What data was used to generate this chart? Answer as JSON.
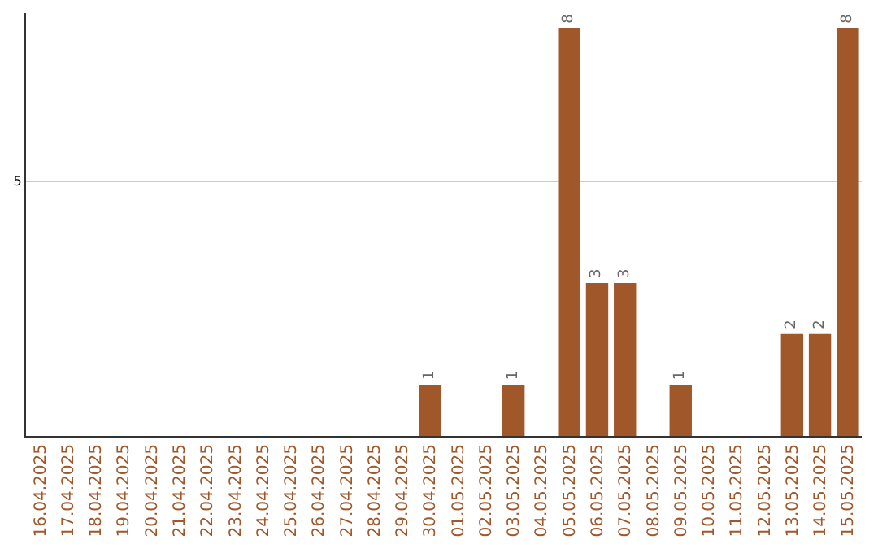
{
  "chart_data": {
    "type": "bar",
    "ylim": [
      0,
      8.3
    ],
    "categories": [
      "16.04.2025",
      "17.04.2025",
      "18.04.2025",
      "19.04.2025",
      "20.04.2025",
      "21.04.2025",
      "22.04.2025",
      "23.04.2025",
      "24.04.2025",
      "25.04.2025",
      "26.04.2025",
      "27.04.2025",
      "28.04.2025",
      "29.04.2025",
      "30.04.2025",
      "01.05.2025",
      "02.05.2025",
      "03.05.2025",
      "04.05.2025",
      "05.05.2025",
      "06.05.2025",
      "07.05.2025",
      "08.05.2025",
      "09.05.2025",
      "10.05.2025",
      "11.05.2025",
      "12.05.2025",
      "13.05.2025",
      "14.05.2025",
      "15.05.2025"
    ],
    "values": [
      null,
      null,
      null,
      null,
      null,
      null,
      null,
      null,
      null,
      null,
      null,
      null,
      null,
      null,
      1,
      null,
      null,
      1,
      null,
      8,
      3,
      3,
      null,
      1,
      null,
      null,
      null,
      2,
      2,
      8
    ],
    "value_labels": [
      null,
      null,
      null,
      null,
      null,
      null,
      null,
      null,
      null,
      null,
      null,
      null,
      null,
      null,
      "1",
      null,
      null,
      "1",
      null,
      "8",
      "3",
      "3",
      null,
      "1",
      null,
      null,
      null,
      "2",
      "2",
      "8"
    ],
    "color": "#a0582b",
    "yticks": [
      5
    ],
    "grid": "y",
    "legend": false
  }
}
